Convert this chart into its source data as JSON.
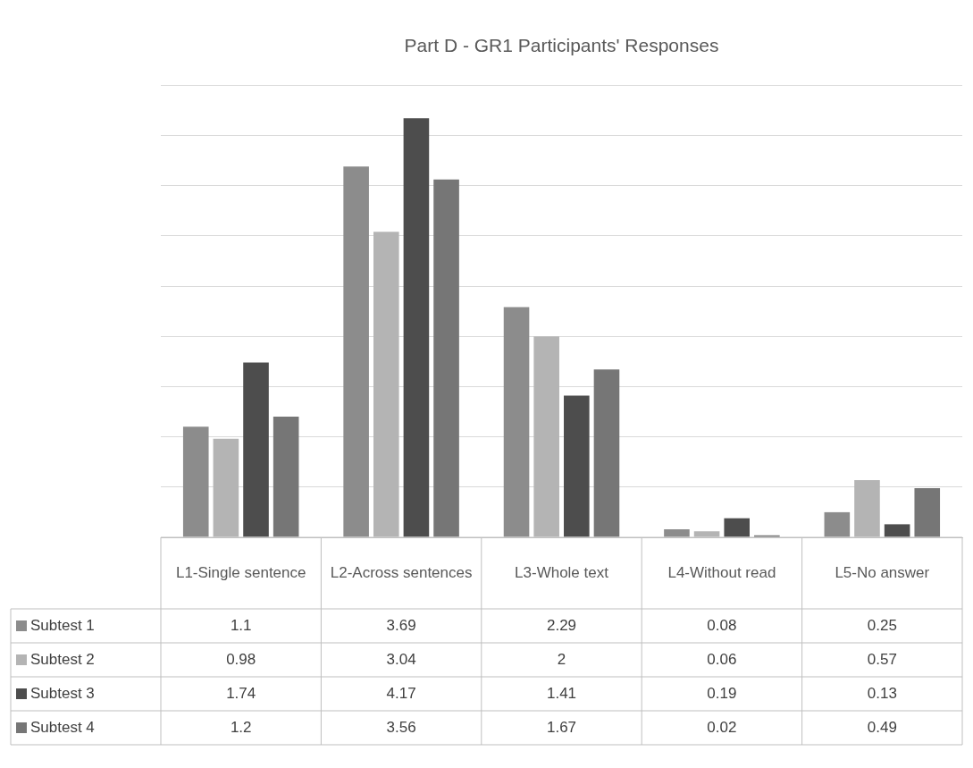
{
  "chart_data": {
    "type": "bar",
    "title": "Part D - GR1 Participants' Responses",
    "categories": [
      "L1-Single sentence",
      "L2-Across sentences",
      "L3-Whole text",
      "L4-Without read",
      "L5-No answer"
    ],
    "series": [
      {
        "name": "Subtest 1",
        "color": "#8c8c8c",
        "values": [
          1.1,
          3.69,
          2.29,
          0.08,
          0.25
        ]
      },
      {
        "name": "Subtest 2",
        "color": "#b4b4b4",
        "values": [
          0.98,
          3.04,
          2,
          0.06,
          0.57
        ]
      },
      {
        "name": "Subtest 3",
        "color": "#4d4d4d",
        "values": [
          1.74,
          4.17,
          1.41,
          0.19,
          0.13
        ]
      },
      {
        "name": "Subtest 4",
        "color": "#767676",
        "values": [
          1.2,
          3.56,
          1.67,
          0.02,
          0.49
        ]
      }
    ],
    "ylim": [
      0,
      4.5
    ],
    "yticks": [
      {
        "value": 0,
        "label": null
      },
      {
        "value": 0.5,
        "label": null
      },
      {
        "value": 1,
        "label": null
      },
      {
        "value": 1.5,
        "label": null
      },
      {
        "value": 2,
        "label": null
      },
      {
        "value": 2.5,
        "label": null
      },
      {
        "value": 3,
        "label": null
      },
      {
        "value": 3.5,
        "label": null
      },
      {
        "value": 4,
        "label": null
      },
      {
        "value": 4.5,
        "label": null
      }
    ],
    "tick_labels": "x",
    "grid": "y",
    "legend": "bottom",
    "data_labels": true
  }
}
